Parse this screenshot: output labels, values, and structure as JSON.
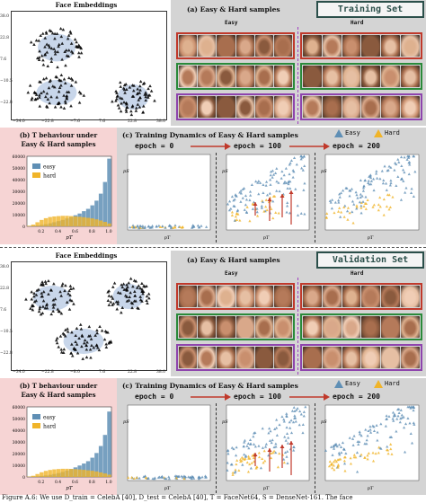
{
  "sections": [
    {
      "embeddings_title": "Face Embeddings",
      "x_ticks": [
        "−34.0",
        "−22.8",
        "−7.6",
        "7.6",
        "22.8",
        "38.0"
      ],
      "y_ticks": [
        "38.0",
        "22.8",
        "7.6",
        "−10.5",
        "−22.8"
      ],
      "samples_title": "(a) Easy & Hard samples",
      "easy_label": "Easy",
      "hard_label": "Hard",
      "set_label": "Training Set",
      "tbeh_title_line1": "(b) T behaviour under",
      "tbeh_title_line2": "Easy & Hard samples",
      "dyn_title": "(c) Training Dynamics of Easy & Hard samples",
      "legend_easy": "Easy",
      "legend_hard": "Hard",
      "epochs": [
        "epoch = 0",
        "epoch = 100",
        "epoch = 200"
      ],
      "hist_legend": [
        "easy",
        "hard"
      ],
      "hist_yticks": [
        "60000",
        "50000",
        "40000",
        "30000",
        "20000",
        "10000",
        "0"
      ],
      "hist_xticks": [
        "0.2",
        "0.4",
        "0.6",
        "0.8",
        "1.0"
      ],
      "hist_xlabel": "pT",
      "scatter_ylabel": "pS",
      "scatter_xlabel": "pT"
    },
    {
      "embeddings_title": "Face Embeddings",
      "x_ticks": [
        "−34.0",
        "−22.8",
        "−8.0",
        "7.6",
        "22.8",
        "38.0"
      ],
      "y_ticks": [
        "38.0",
        "22.8",
        "7.6",
        "−10.5",
        "−22.8"
      ],
      "samples_title": "(a) Easy & Hard samples",
      "easy_label": "Easy",
      "hard_label": "Hard",
      "set_label": "Validation Set",
      "tbeh_title_line1": "(b) T behaviour under",
      "tbeh_title_line2": "Easy & Hard samples",
      "dyn_title": "(c) Training Dynamics of Easy & Hard samples",
      "legend_easy": "Easy",
      "legend_hard": "Hard",
      "epochs": [
        "epoch = 0",
        "epoch = 100",
        "epoch = 200"
      ],
      "hist_legend": [
        "easy",
        "hard"
      ],
      "hist_yticks": [
        "60000",
        "50000",
        "40000",
        "30000",
        "20000",
        "10000",
        "0"
      ],
      "hist_xticks": [
        "0.2",
        "0.4",
        "0.6",
        "0.8",
        "1.0"
      ],
      "hist_xlabel": "pT",
      "scatter_ylabel": "pS",
      "scatter_xlabel": "pT"
    }
  ],
  "caption": "Figure A.6: We use D_train = CelebA [40], D_test = CelebA [40], T = FaceNet64, S = DenseNet-161. The face",
  "colors": {
    "easy": "#5f8fb5",
    "hard": "#f0b429",
    "green_cluster": "#2fa84f",
    "purple_cluster": "#9b4fc0",
    "red_cluster": "#d8344a",
    "set_box_border": "#2b4f4a",
    "arrow": "#c0392b"
  },
  "chart_data": [
    {
      "type": "bar",
      "title": "(b) T behaviour under Easy & Hard samples",
      "xlabel": "pT",
      "ylim": [
        0,
        60000
      ],
      "categories": [
        "0.05",
        "0.1",
        "0.15",
        "0.2",
        "0.25",
        "0.3",
        "0.35",
        "0.4",
        "0.45",
        "0.5",
        "0.55",
        "0.6",
        "0.65",
        "0.7",
        "0.75",
        "0.8",
        "0.85",
        "0.9",
        "0.95",
        "1.0"
      ],
      "series": [
        {
          "name": "easy",
          "values": [
            300,
            500,
            800,
            1200,
            1800,
            2600,
            3500,
            4500,
            5500,
            6800,
            8000,
            9500,
            11000,
            13000,
            15000,
            18000,
            22000,
            28000,
            38000,
            58000
          ]
        },
        {
          "name": "hard",
          "values": [
            500,
            1500,
            3500,
            5500,
            7000,
            8000,
            8500,
            8800,
            9000,
            9000,
            8800,
            8500,
            8200,
            7800,
            7300,
            6800,
            6000,
            5000,
            3800,
            2500
          ]
        }
      ]
    },
    {
      "type": "bar",
      "title": "(b) T behaviour under Easy & Hard samples",
      "xlabel": "pT",
      "ylim": [
        0,
        60000
      ],
      "categories": [
        "0.05",
        "0.1",
        "0.15",
        "0.2",
        "0.25",
        "0.3",
        "0.35",
        "0.4",
        "0.45",
        "0.5",
        "0.55",
        "0.6",
        "0.65",
        "0.7",
        "0.75",
        "0.8",
        "0.85",
        "0.9",
        "0.95",
        "1.0"
      ],
      "series": [
        {
          "name": "easy",
          "values": [
            200,
            400,
            600,
            900,
            1300,
            1800,
            2500,
            3300,
            4300,
            5500,
            6800,
            8200,
            9800,
            11500,
            13500,
            16500,
            20500,
            26500,
            36000,
            56000
          ]
        },
        {
          "name": "hard",
          "values": [
            300,
            1000,
            2500,
            4000,
            5200,
            6000,
            6500,
            6800,
            7000,
            7000,
            6900,
            6700,
            6400,
            6100,
            5700,
            5300,
            4700,
            3900,
            3000,
            2000
          ]
        }
      ]
    }
  ]
}
